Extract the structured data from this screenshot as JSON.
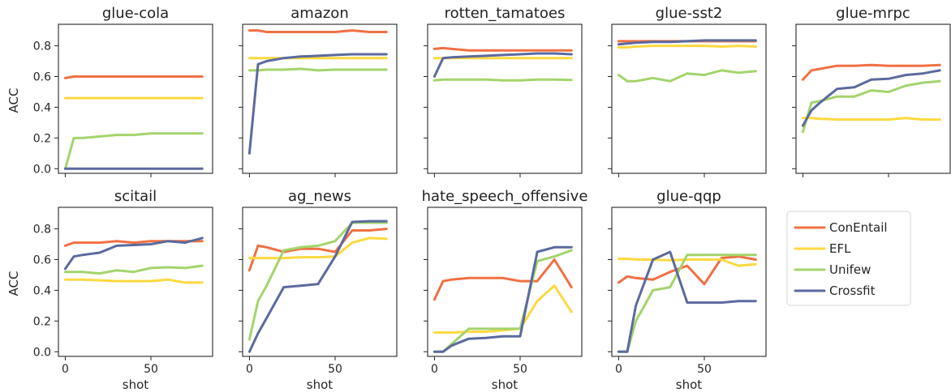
{
  "figure": {
    "x_shared_ticks": [
      0,
      50
    ],
    "y_shared_ticks": [
      "0.0",
      "0.2",
      "0.4",
      "0.6",
      "0.8"
    ],
    "ylim": [
      -0.03,
      0.94
    ],
    "xlim": [
      -4,
      86
    ]
  },
  "legend": {
    "placement": "right",
    "items": [
      {
        "label": "ConEntail",
        "color": "#f07043"
      },
      {
        "label": "EFL",
        "color": "#fcd940"
      },
      {
        "label": "Unifew",
        "color": "#a3d46c"
      },
      {
        "label": "Crossfit",
        "color": "#5b6a9e"
      }
    ]
  },
  "chart_data": [
    {
      "type": "line",
      "title": "glue-cola",
      "xlabel": "",
      "ylabel": "ACC",
      "x": [
        0,
        5,
        10,
        20,
        30,
        40,
        50,
        60,
        70,
        80
      ],
      "series": [
        {
          "name": "ConEntail",
          "values": [
            0.59,
            0.6,
            0.6,
            0.6,
            0.6,
            0.6,
            0.6,
            0.6,
            0.6,
            0.6
          ]
        },
        {
          "name": "EFL",
          "values": [
            0.46,
            0.46,
            0.46,
            0.46,
            0.46,
            0.46,
            0.46,
            0.46,
            0.46,
            0.46
          ]
        },
        {
          "name": "Unifew",
          "values": [
            0.0,
            0.2,
            0.2,
            0.21,
            0.22,
            0.22,
            0.23,
            0.23,
            0.23,
            0.23
          ]
        },
        {
          "name": "Crossfit",
          "values": [
            0.0,
            0.0,
            0.0,
            0.0,
            0.0,
            0.0,
            0.0,
            0.0,
            0.0,
            0.0
          ]
        }
      ]
    },
    {
      "type": "line",
      "title": "amazon",
      "xlabel": "",
      "ylabel": "",
      "x": [
        0,
        5,
        10,
        20,
        30,
        40,
        50,
        60,
        70,
        80
      ],
      "series": [
        {
          "name": "ConEntail",
          "values": [
            0.9,
            0.9,
            0.89,
            0.89,
            0.89,
            0.89,
            0.89,
            0.9,
            0.89,
            0.89
          ]
        },
        {
          "name": "EFL",
          "values": [
            0.72,
            0.72,
            0.72,
            0.72,
            0.72,
            0.72,
            0.72,
            0.72,
            0.72,
            0.72
          ]
        },
        {
          "name": "Unifew",
          "values": [
            0.64,
            0.64,
            0.645,
            0.645,
            0.65,
            0.64,
            0.645,
            0.645,
            0.645,
            0.645
          ]
        },
        {
          "name": "Crossfit",
          "values": [
            0.1,
            0.68,
            0.7,
            0.72,
            0.73,
            0.735,
            0.74,
            0.745,
            0.745,
            0.745
          ]
        }
      ]
    },
    {
      "type": "line",
      "title": "rotten_tamatoes",
      "xlabel": "",
      "ylabel": "",
      "x": [
        0,
        5,
        10,
        20,
        30,
        40,
        50,
        60,
        70,
        80
      ],
      "series": [
        {
          "name": "ConEntail",
          "values": [
            0.78,
            0.785,
            0.78,
            0.77,
            0.77,
            0.77,
            0.77,
            0.77,
            0.77,
            0.77
          ]
        },
        {
          "name": "EFL",
          "values": [
            0.72,
            0.72,
            0.72,
            0.72,
            0.72,
            0.72,
            0.72,
            0.72,
            0.72,
            0.72
          ]
        },
        {
          "name": "Unifew",
          "values": [
            0.575,
            0.58,
            0.58,
            0.58,
            0.58,
            0.575,
            0.575,
            0.58,
            0.58,
            0.578
          ]
        },
        {
          "name": "Crossfit",
          "values": [
            0.6,
            0.72,
            0.725,
            0.73,
            0.735,
            0.74,
            0.745,
            0.75,
            0.75,
            0.745
          ]
        }
      ]
    },
    {
      "type": "line",
      "title": "glue-sst2",
      "xlabel": "",
      "ylabel": "",
      "x": [
        0,
        5,
        10,
        20,
        30,
        40,
        50,
        60,
        70,
        80
      ],
      "series": [
        {
          "name": "ConEntail",
          "values": [
            0.83,
            0.83,
            0.83,
            0.83,
            0.83,
            0.83,
            0.83,
            0.83,
            0.83,
            0.83
          ]
        },
        {
          "name": "EFL",
          "values": [
            0.79,
            0.79,
            0.795,
            0.8,
            0.8,
            0.8,
            0.8,
            0.795,
            0.8,
            0.795
          ]
        },
        {
          "name": "Unifew",
          "values": [
            0.61,
            0.57,
            0.57,
            0.59,
            0.57,
            0.62,
            0.61,
            0.64,
            0.625,
            0.635
          ]
        },
        {
          "name": "Crossfit",
          "values": [
            0.81,
            0.815,
            0.82,
            0.825,
            0.825,
            0.83,
            0.835,
            0.835,
            0.835,
            0.835
          ]
        }
      ]
    },
    {
      "type": "line",
      "title": "glue-mrpc",
      "xlabel": "",
      "ylabel": "",
      "x": [
        0,
        5,
        10,
        20,
        30,
        40,
        50,
        60,
        70,
        80
      ],
      "series": [
        {
          "name": "ConEntail",
          "values": [
            0.58,
            0.64,
            0.65,
            0.67,
            0.67,
            0.675,
            0.67,
            0.67,
            0.67,
            0.675
          ]
        },
        {
          "name": "EFL",
          "values": [
            0.33,
            0.33,
            0.325,
            0.32,
            0.32,
            0.32,
            0.32,
            0.33,
            0.32,
            0.32
          ]
        },
        {
          "name": "Unifew",
          "values": [
            0.24,
            0.43,
            0.44,
            0.47,
            0.47,
            0.51,
            0.5,
            0.54,
            0.56,
            0.57
          ]
        },
        {
          "name": "Crossfit",
          "values": [
            0.28,
            0.38,
            0.43,
            0.52,
            0.53,
            0.58,
            0.585,
            0.61,
            0.62,
            0.64
          ]
        }
      ]
    },
    {
      "type": "line",
      "title": "scitail",
      "xlabel": "",
      "ylabel": "ACC",
      "x": [
        0,
        5,
        10,
        20,
        30,
        40,
        50,
        60,
        70,
        80
      ],
      "series": [
        {
          "name": "ConEntail",
          "values": [
            0.69,
            0.71,
            0.71,
            0.71,
            0.72,
            0.71,
            0.72,
            0.72,
            0.72,
            0.72
          ]
        },
        {
          "name": "EFL",
          "values": [
            0.47,
            0.47,
            0.47,
            0.465,
            0.46,
            0.46,
            0.46,
            0.47,
            0.45,
            0.45
          ]
        },
        {
          "name": "Unifew",
          "values": [
            0.52,
            0.52,
            0.52,
            0.51,
            0.53,
            0.52,
            0.545,
            0.55,
            0.545,
            0.56
          ]
        },
        {
          "name": "Crossfit",
          "values": [
            0.54,
            0.62,
            0.63,
            0.645,
            0.69,
            0.695,
            0.7,
            0.72,
            0.71,
            0.74
          ]
        }
      ]
    },
    {
      "type": "line",
      "title": "ag_news",
      "xlabel": "",
      "ylabel": "",
      "x": [
        0,
        5,
        10,
        20,
        30,
        40,
        50,
        60,
        70,
        80
      ],
      "series": [
        {
          "name": "ConEntail",
          "values": [
            0.53,
            0.69,
            0.68,
            0.65,
            0.67,
            0.67,
            0.65,
            0.79,
            0.79,
            0.8
          ]
        },
        {
          "name": "EFL",
          "values": [
            0.61,
            0.61,
            0.61,
            0.61,
            0.615,
            0.615,
            0.62,
            0.71,
            0.74,
            0.735
          ]
        },
        {
          "name": "Unifew",
          "values": [
            0.08,
            0.33,
            0.43,
            0.66,
            0.68,
            0.69,
            0.72,
            0.84,
            0.84,
            0.84
          ]
        },
        {
          "name": "Crossfit",
          "values": [
            0.0,
            0.12,
            0.22,
            0.42,
            0.43,
            0.44,
            0.62,
            0.845,
            0.85,
            0.85
          ]
        }
      ]
    },
    {
      "type": "line",
      "title": "hate_speech_offensive",
      "xlabel": "",
      "ylabel": "",
      "x": [
        0,
        5,
        10,
        20,
        30,
        40,
        50,
        60,
        70,
        80
      ],
      "series": [
        {
          "name": "ConEntail",
          "values": [
            0.34,
            0.46,
            0.47,
            0.48,
            0.48,
            0.48,
            0.46,
            0.46,
            0.6,
            0.42
          ]
        },
        {
          "name": "EFL",
          "values": [
            0.125,
            0.125,
            0.125,
            0.13,
            0.13,
            0.14,
            0.15,
            0.33,
            0.43,
            0.26
          ]
        },
        {
          "name": "Unifew",
          "values": [
            0.0,
            0.0,
            0.05,
            0.15,
            0.15,
            0.15,
            0.15,
            0.59,
            0.62,
            0.66
          ]
        },
        {
          "name": "Crossfit",
          "values": [
            0.0,
            0.0,
            0.04,
            0.085,
            0.09,
            0.1,
            0.1,
            0.65,
            0.68,
            0.68
          ]
        }
      ]
    },
    {
      "type": "line",
      "title": "glue-qqp",
      "xlabel": "",
      "ylabel": "",
      "x": [
        0,
        5,
        10,
        20,
        30,
        40,
        50,
        60,
        70,
        80
      ],
      "series": [
        {
          "name": "ConEntail",
          "values": [
            0.45,
            0.49,
            0.48,
            0.47,
            0.52,
            0.56,
            0.44,
            0.61,
            0.62,
            0.6
          ]
        },
        {
          "name": "EFL",
          "values": [
            0.605,
            0.605,
            0.6,
            0.6,
            0.595,
            0.6,
            0.6,
            0.6,
            0.56,
            0.57
          ]
        },
        {
          "name": "Unifew",
          "values": [
            0.0,
            0.0,
            0.2,
            0.4,
            0.42,
            0.63,
            0.63,
            0.63,
            0.63,
            0.63
          ]
        },
        {
          "name": "Crossfit",
          "values": [
            0.0,
            0.0,
            0.3,
            0.6,
            0.65,
            0.32,
            0.32,
            0.32,
            0.33,
            0.33
          ]
        }
      ]
    }
  ]
}
